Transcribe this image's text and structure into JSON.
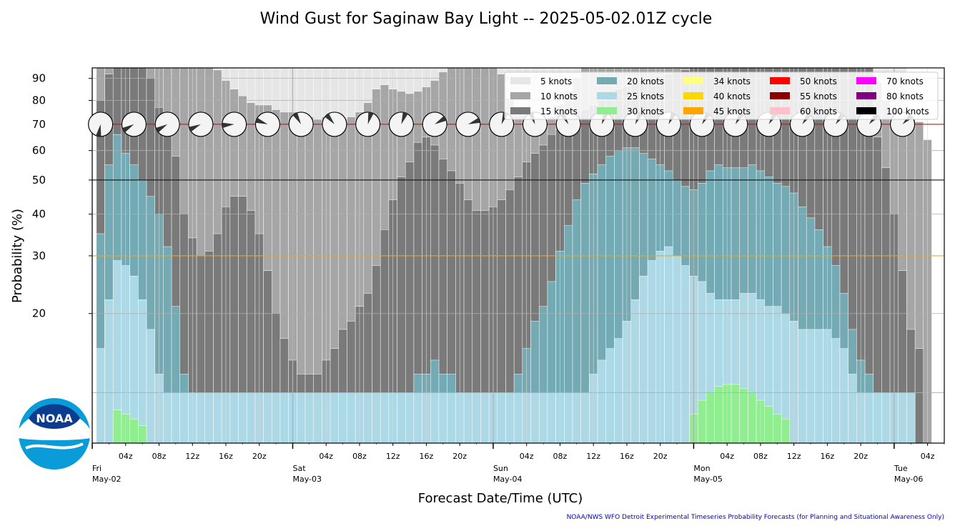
{
  "chart_data": {
    "type": "bar",
    "title": "Wind Gust for Saginaw Bay Light -- 2025-05-02.01Z cycle",
    "xlabel": "Forecast Date/Time (UTC)",
    "ylabel": "Probability (%)",
    "y_scale": "power",
    "ylim": [
      12,
      95
    ],
    "yticks": [
      20,
      30,
      40,
      50,
      60,
      70,
      80,
      90
    ],
    "y_gridlines": [
      13,
      20,
      30,
      40,
      50,
      60,
      70,
      80,
      90
    ],
    "reference_lines": [
      {
        "value": 70,
        "color": "#cc0000"
      },
      {
        "value": 50,
        "color": "#000000"
      },
      {
        "value": 30,
        "color": "#ffa500"
      }
    ],
    "x_start_hour": 0,
    "x_end_hour": 102,
    "bar_hours": 1,
    "first_bar_hour": 1,
    "x_hour_tick_labels": [
      "04z",
      "08z",
      "12z",
      "16z",
      "20z",
      "04z",
      "08z",
      "12z",
      "16z",
      "20z",
      "04z",
      "08z",
      "12z",
      "16z",
      "20z",
      "04z",
      "08z",
      "12z",
      "16z",
      "20z",
      "04z"
    ],
    "x_hour_tick_hours": [
      4,
      8,
      12,
      16,
      20,
      28,
      32,
      36,
      40,
      44,
      52,
      56,
      60,
      64,
      68,
      76,
      80,
      84,
      88,
      92,
      100
    ],
    "x_day_labels": [
      {
        "hour": 0,
        "day": "Fri",
        "date": "May-02"
      },
      {
        "hour": 24,
        "day": "Sat",
        "date": "May-03"
      },
      {
        "hour": 48,
        "day": "Sun",
        "date": "May-04"
      },
      {
        "hour": 72,
        "day": "Mon",
        "date": "May-05"
      },
      {
        "hour": 96,
        "day": "Tue",
        "date": "May-06"
      }
    ],
    "series": [
      {
        "name": "5 knots",
        "color": "#e6e6e6",
        "values": [
          100,
          100,
          100,
          100,
          100,
          100,
          100,
          100,
          100,
          100,
          100,
          100,
          100,
          100,
          100,
          100,
          100,
          100,
          100,
          100,
          100,
          100,
          100,
          100,
          100,
          100,
          100,
          100,
          100,
          100,
          100,
          100,
          100,
          100,
          100,
          100,
          100,
          100,
          100,
          100,
          100,
          100,
          100,
          100,
          100,
          100,
          100,
          100,
          100,
          100,
          100,
          100,
          100,
          100,
          100,
          100,
          100,
          100,
          100,
          100,
          100,
          100,
          100,
          100,
          100,
          100,
          100,
          100,
          100,
          100,
          100,
          100,
          100,
          100,
          100,
          100,
          100,
          100,
          100,
          100,
          100,
          100,
          100,
          100,
          100,
          100,
          100,
          100,
          100,
          100,
          100,
          100,
          100,
          100,
          100,
          100,
          100
        ]
      },
      {
        "name": "10 knots",
        "color": "#a6a6a6",
        "values": [
          100,
          100,
          100,
          100,
          100,
          100,
          100,
          100,
          100,
          100,
          100,
          100,
          99,
          97,
          94,
          89,
          85,
          82,
          79,
          78,
          78,
          76,
          75,
          75,
          74,
          73,
          72,
          73,
          71,
          72,
          73,
          75,
          79,
          85,
          87,
          85,
          84,
          83,
          84,
          86,
          89,
          93,
          100,
          100,
          100,
          100,
          100,
          100,
          92,
          81,
          77,
          74,
          72,
          70,
          73,
          78,
          84,
          90,
          95,
          100,
          100,
          100,
          100,
          100,
          100,
          100,
          100,
          100,
          100,
          100,
          100,
          100,
          100,
          100,
          100,
          100,
          100,
          100,
          100,
          100,
          100,
          100,
          100,
          100,
          100,
          100,
          100,
          100,
          100,
          100,
          100,
          100,
          100,
          88,
          80,
          76,
          73,
          72,
          71,
          64
        ]
      },
      {
        "name": "15 knots",
        "color": "#7a7a7a",
        "values": [
          80,
          92,
          100,
          100,
          100,
          95,
          90,
          77,
          66,
          58,
          40,
          34,
          30,
          31,
          35,
          42,
          45,
          45,
          41,
          35,
          27,
          20,
          17,
          15,
          14,
          14,
          14,
          15,
          16,
          18,
          19,
          21,
          23,
          28,
          36,
          44,
          51,
          56,
          63,
          65,
          62,
          57,
          53,
          49,
          44,
          41,
          41,
          42,
          44,
          47,
          51,
          56,
          59,
          62,
          66,
          68,
          72,
          74,
          76,
          78,
          80,
          84,
          85,
          86,
          88,
          89,
          90,
          91,
          92,
          93,
          94,
          96,
          98,
          100,
          100,
          100,
          100,
          100,
          100,
          100,
          100,
          100,
          100,
          100,
          100,
          100,
          100,
          100,
          100,
          100,
          100,
          100,
          100,
          65,
          54,
          40,
          27,
          18,
          16
        ]
      },
      {
        "name": "20 knots",
        "color": "#74aab4",
        "values": [
          35,
          55,
          66,
          59,
          55,
          50,
          45,
          40,
          32,
          21,
          14,
          13,
          13,
          13,
          13,
          13,
          13,
          13,
          13,
          13,
          13,
          13,
          13,
          13,
          13,
          13,
          13,
          13,
          13,
          13,
          13,
          13,
          13,
          13,
          13,
          13,
          13,
          13,
          14,
          14,
          15,
          14,
          14,
          13,
          13,
          13,
          13,
          13,
          13,
          13,
          14,
          16,
          19,
          21,
          25,
          31,
          37,
          44,
          49,
          52,
          55,
          58,
          60,
          61,
          61,
          59,
          57,
          55,
          53,
          50,
          48,
          47,
          49,
          53,
          55,
          54,
          54,
          54,
          55,
          53,
          51,
          49,
          48,
          46,
          42,
          39,
          36,
          32,
          28,
          23,
          18,
          15,
          14,
          13,
          13,
          13,
          13,
          13
        ]
      },
      {
        "name": "25 knots",
        "color": "#add8e6",
        "values": [
          16,
          22,
          29,
          28,
          26,
          22,
          18,
          14,
          13,
          13,
          13,
          13,
          13,
          13,
          13,
          13,
          13,
          13,
          13,
          13,
          13,
          13,
          13,
          13,
          13,
          13,
          13,
          13,
          13,
          13,
          13,
          13,
          13,
          13,
          13,
          13,
          13,
          13,
          13,
          13,
          13,
          13,
          13,
          13,
          13,
          13,
          13,
          13,
          13,
          13,
          13,
          13,
          13,
          13,
          13,
          13,
          13,
          13,
          13,
          14,
          15,
          16,
          17,
          19,
          22,
          26,
          29,
          31,
          32,
          30,
          28,
          26,
          25,
          23,
          22,
          22,
          22,
          23,
          23,
          22,
          21,
          21,
          20,
          19,
          18,
          18,
          18,
          18,
          17,
          16,
          14,
          13,
          13,
          13,
          13,
          13,
          13,
          13
        ]
      },
      {
        "name": "30 knots",
        "color": "#90ee90",
        "values": [
          12,
          12,
          12.4,
          12.3,
          12.2,
          12.1,
          12,
          12,
          12,
          12,
          12,
          12,
          12,
          12,
          12,
          12,
          12,
          12,
          12,
          12,
          12,
          12,
          12,
          12,
          12,
          12,
          12,
          12,
          12,
          12,
          12,
          12,
          12,
          12,
          12,
          12,
          12,
          12,
          12,
          12,
          12,
          12,
          12,
          12,
          12,
          12,
          12,
          12,
          12,
          12,
          12,
          12,
          12,
          12,
          12,
          12,
          12,
          12,
          12,
          12,
          12,
          12,
          12,
          12,
          12,
          12,
          12,
          12,
          12,
          12,
          12,
          12.3,
          12.7,
          13,
          13.3,
          13.4,
          13.4,
          13.2,
          13,
          12.7,
          12.5,
          12.3,
          12.2,
          12,
          12,
          12,
          12,
          12,
          12,
          12,
          12,
          12,
          12,
          12,
          12,
          12,
          12,
          12
        ]
      },
      {
        "name": "34 knots",
        "color": "#ffff80",
        "values": []
      },
      {
        "name": "40 knots",
        "color": "#ffd700",
        "values": []
      },
      {
        "name": "45 knots",
        "color": "#ffa500",
        "values": []
      },
      {
        "name": "50 knots",
        "color": "#ff0000",
        "values": []
      },
      {
        "name": "55 knots",
        "color": "#8b0000",
        "values": []
      },
      {
        "name": "60 knots",
        "color": "#ffc0cb",
        "values": []
      },
      {
        "name": "70 knots",
        "color": "#ff00ff",
        "values": []
      },
      {
        "name": "80 knots",
        "color": "#800080",
        "values": []
      },
      {
        "name": "100 knots",
        "color": "#000000",
        "values": []
      }
    ],
    "wind_direction_hours": [
      1,
      5,
      9,
      13,
      17,
      21,
      25,
      29,
      33,
      37,
      41,
      45,
      49,
      53,
      57,
      61,
      65,
      69,
      73,
      77,
      81,
      85,
      89,
      93,
      97
    ],
    "wind_direction_degrees": [
      190,
      240,
      240,
      245,
      265,
      290,
      330,
      320,
      15,
      20,
      60,
      70,
      20,
      340,
      330,
      20,
      25,
      25,
      30,
      30,
      30,
      35,
      35,
      40,
      45
    ],
    "grid": true,
    "legend": "top-right"
  },
  "footer": "NOAA/NWS WFO Detroit Experimental Timeseries Probability Forecasts (for Planning and Situational Awareness Only)",
  "logo_text": "NOAA"
}
